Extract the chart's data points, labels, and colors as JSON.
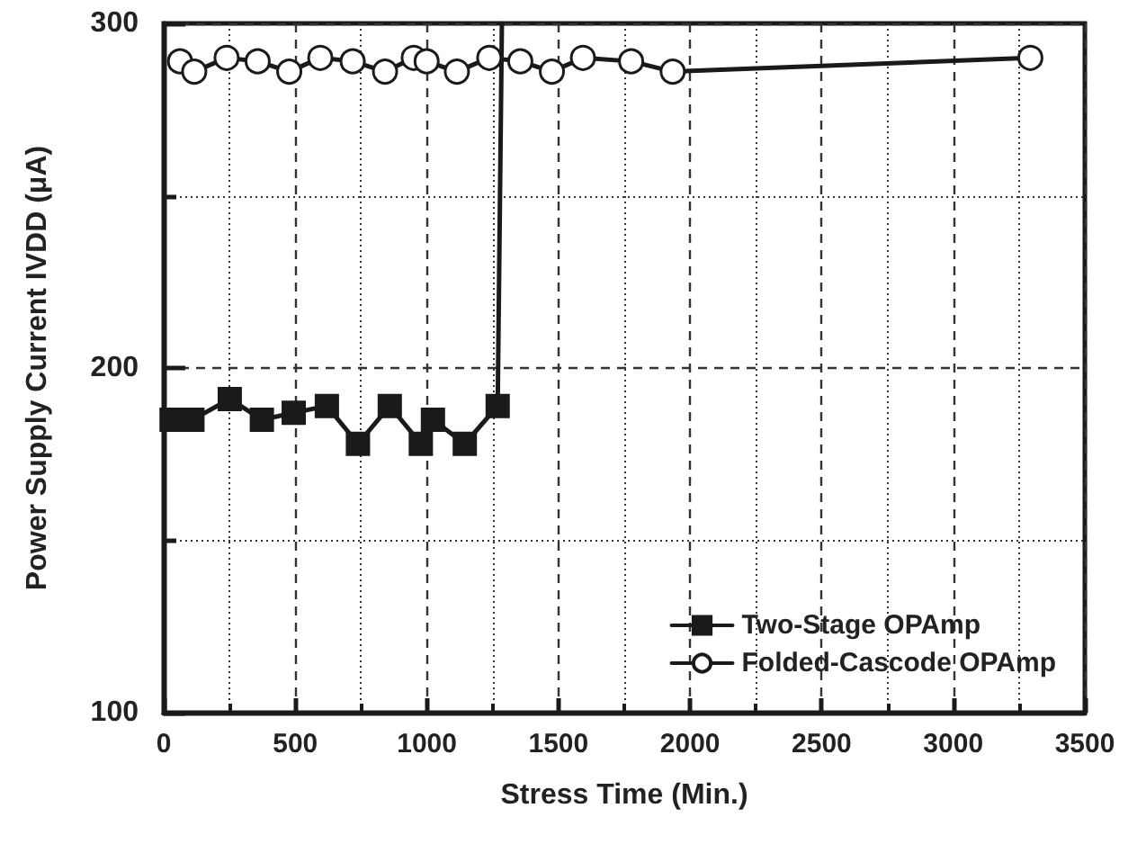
{
  "chart_data": {
    "type": "line",
    "xlabel": "Stress Time (Min.)",
    "ylabel": "Power Supply Current IVDD (μA)",
    "xlim": [
      0,
      3500
    ],
    "xticks": [
      0,
      500,
      1000,
      1500,
      2000,
      2500,
      3000,
      3500
    ],
    "ylim": [
      100,
      300
    ],
    "yticks": [
      100,
      200,
      300
    ],
    "grid": true,
    "legend": "bottom right",
    "line_style": "solid",
    "series": [
      {
        "name": "Two-Stage OPAmp",
        "color": "#1a1a1a",
        "marker": "square",
        "x": [
          30,
          109,
          251,
          373,
          494,
          620,
          738,
          859,
          977,
          1023,
          1144,
          1269,
          1285
        ],
        "values": [
          185,
          185,
          191,
          185,
          187,
          189,
          178,
          189,
          178,
          185,
          178,
          189,
          300
        ]
      },
      {
        "name": "Folded-Cascode OPAmp",
        "color": "#1a1a1a",
        "marker": "circle",
        "x": [
          62,
          116,
          239,
          357,
          477,
          595,
          718,
          841,
          950,
          999,
          1114,
          1237,
          1355,
          1475,
          1593,
          1776,
          1934,
          3293
        ],
        "values": [
          289,
          286,
          290,
          289,
          286,
          290,
          289,
          286,
          290,
          289,
          286,
          290,
          289,
          286,
          290,
          289,
          286,
          290
        ]
      }
    ]
  }
}
